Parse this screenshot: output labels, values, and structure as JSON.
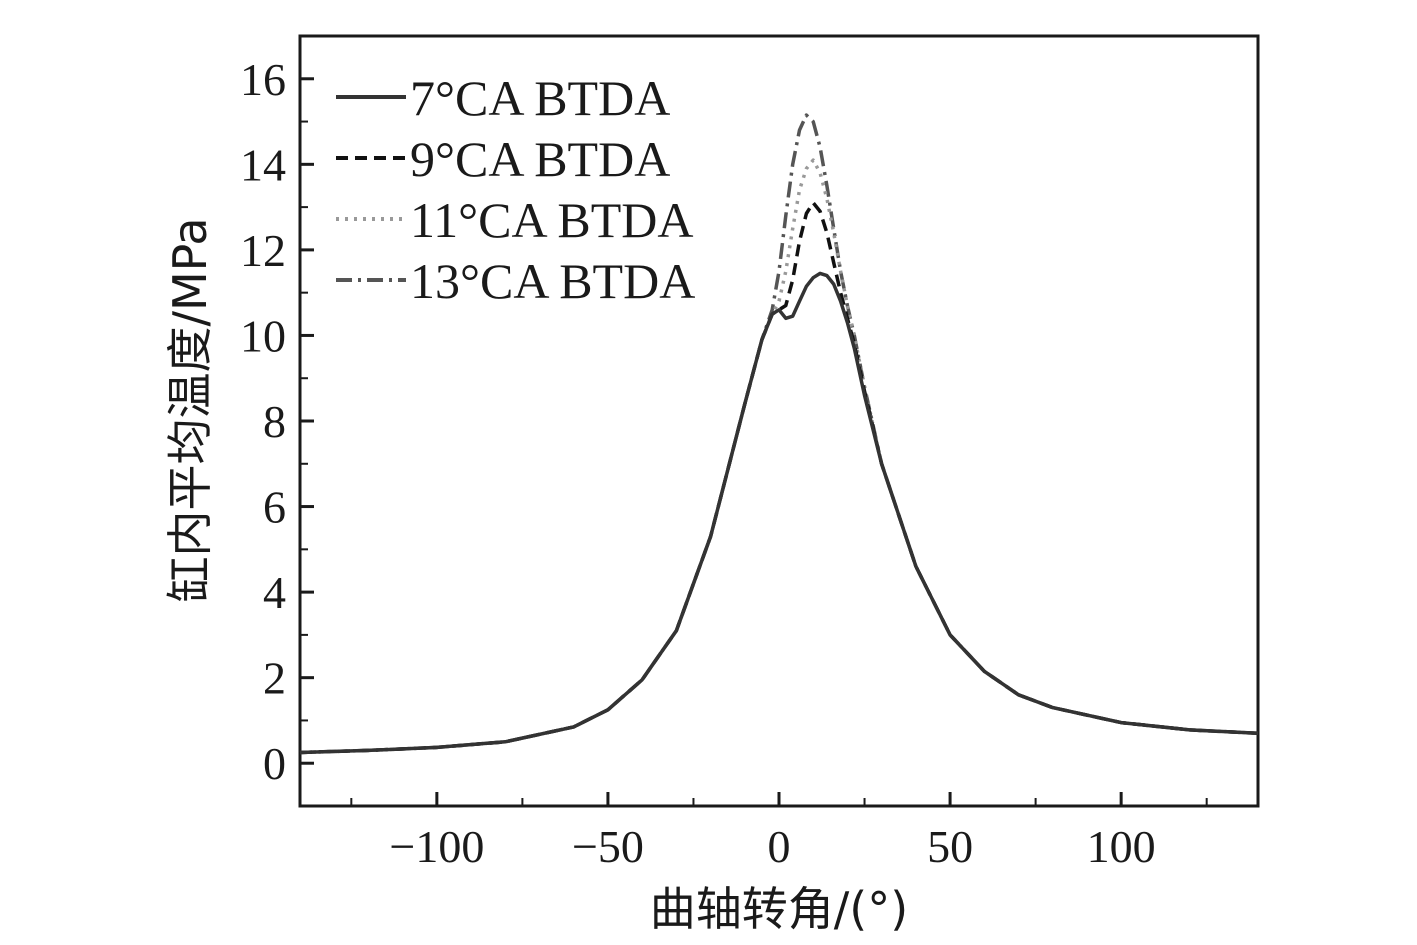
{
  "chart_data": {
    "type": "line",
    "title": "",
    "xlabel": "曲轴转角/(°)",
    "ylabel": "缸内平均温度/MPa",
    "xlim": [
      -140,
      140
    ],
    "ylim": [
      -1,
      17
    ],
    "xticks": [
      -100,
      -50,
      0,
      50,
      100
    ],
    "xtick_labels": [
      "−100",
      "−50",
      "0",
      "50",
      "100"
    ],
    "yticks": [
      0,
      2,
      4,
      6,
      8,
      10,
      12,
      14,
      16
    ],
    "ytick_labels": [
      "0",
      "2",
      "4",
      "6",
      "8",
      "10",
      "12",
      "14",
      "16"
    ],
    "grid": false,
    "legend_position": "top-left",
    "series": [
      {
        "name": "7°CA BTDA",
        "style": "solid",
        "color": "#333333",
        "x": [
          -140,
          -120,
          -100,
          -80,
          -60,
          -50,
          -40,
          -30,
          -20,
          -10,
          -5,
          -2,
          0,
          2,
          4,
          6,
          8,
          10,
          12,
          14,
          16,
          18,
          20,
          22,
          25,
          30,
          40,
          50,
          60,
          70,
          80,
          100,
          120,
          140
        ],
        "y": [
          0.25,
          0.3,
          0.37,
          0.5,
          0.85,
          1.25,
          1.95,
          3.1,
          5.3,
          8.4,
          9.9,
          10.5,
          10.6,
          10.4,
          10.45,
          10.8,
          11.15,
          11.35,
          11.45,
          11.4,
          11.2,
          10.8,
          10.3,
          9.7,
          8.6,
          7.0,
          4.6,
          3.0,
          2.15,
          1.6,
          1.3,
          0.95,
          0.78,
          0.7
        ]
      },
      {
        "name": "9°CA BTDA",
        "style": "dashed",
        "color": "#111111",
        "x": [
          -140,
          -120,
          -100,
          -80,
          -60,
          -50,
          -40,
          -30,
          -20,
          -10,
          -5,
          -2,
          0,
          2,
          4,
          6,
          8,
          10,
          12,
          14,
          16,
          18,
          20,
          22,
          25,
          30,
          40,
          50,
          60,
          70,
          80,
          100,
          120,
          140
        ],
        "y": [
          0.25,
          0.3,
          0.37,
          0.5,
          0.85,
          1.25,
          1.95,
          3.1,
          5.3,
          8.4,
          9.9,
          10.5,
          10.6,
          10.7,
          11.3,
          12.2,
          12.85,
          13.1,
          12.9,
          12.4,
          11.7,
          11.0,
          10.4,
          9.8,
          8.7,
          7.0,
          4.6,
          3.0,
          2.15,
          1.6,
          1.3,
          0.95,
          0.78,
          0.7
        ]
      },
      {
        "name": "11°CA BTDA",
        "style": "dotted",
        "color": "#999999",
        "x": [
          -140,
          -120,
          -100,
          -80,
          -60,
          -50,
          -40,
          -30,
          -20,
          -10,
          -5,
          -2,
          0,
          2,
          4,
          6,
          8,
          10,
          12,
          14,
          16,
          18,
          20,
          22,
          25,
          30,
          40,
          50,
          60,
          70,
          80,
          100,
          120,
          140
        ],
        "y": [
          0.25,
          0.3,
          0.37,
          0.5,
          0.85,
          1.25,
          1.95,
          3.1,
          5.3,
          8.4,
          9.9,
          10.5,
          10.8,
          11.5,
          12.5,
          13.4,
          13.9,
          14.1,
          13.8,
          13.2,
          12.4,
          11.5,
          10.7,
          10.0,
          8.8,
          7.0,
          4.6,
          3.0,
          2.15,
          1.6,
          1.3,
          0.95,
          0.78,
          0.7
        ]
      },
      {
        "name": "13°CA BTDA",
        "style": "dashdot",
        "color": "#555555",
        "x": [
          -140,
          -120,
          -100,
          -80,
          -60,
          -50,
          -40,
          -30,
          -20,
          -10,
          -5,
          -2,
          0,
          2,
          4,
          6,
          8,
          10,
          12,
          14,
          16,
          18,
          20,
          22,
          25,
          30,
          40,
          50,
          60,
          70,
          80,
          100,
          120,
          140
        ],
        "y": [
          0.25,
          0.3,
          0.37,
          0.5,
          0.85,
          1.25,
          1.95,
          3.1,
          5.3,
          8.4,
          9.9,
          10.6,
          11.5,
          12.8,
          14.0,
          14.8,
          15.15,
          15.0,
          14.4,
          13.5,
          12.5,
          11.5,
          10.7,
          10.0,
          8.8,
          7.0,
          4.6,
          3.0,
          2.15,
          1.6,
          1.3,
          0.95,
          0.78,
          0.7
        ]
      }
    ]
  }
}
